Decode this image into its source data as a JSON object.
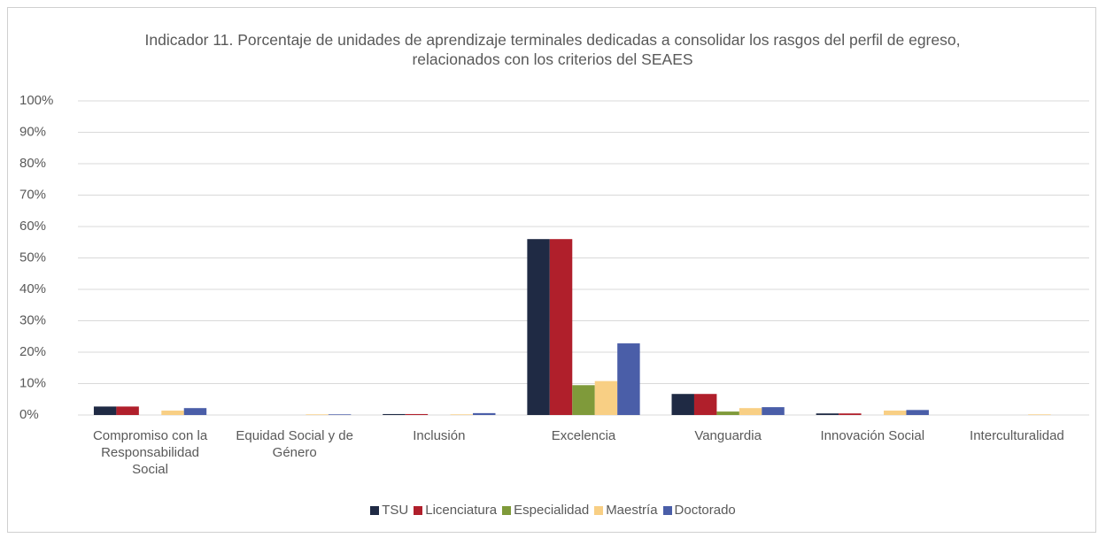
{
  "chart_data": {
    "type": "bar",
    "title": "Indicador 11. Porcentaje de unidades de aprendizaje terminales dedicadas a consolidar los rasgos del perfil de egreso, relacionados con los criterios del SEAES",
    "categories": [
      "Compromiso con la Responsabilidad Social",
      "Equidad Social y de Género",
      "Inclusión",
      "Excelencia",
      "Vanguardia",
      "Innovación Social",
      "Interculturalidad"
    ],
    "series": [
      {
        "name": "TSU",
        "color": "#1f2a44",
        "values": [
          2.7,
          0,
          0.3,
          56,
          6.7,
          0.5,
          0
        ]
      },
      {
        "name": "Licenciatura",
        "color": "#b01f2b",
        "values": [
          2.7,
          0,
          0.3,
          56,
          6.7,
          0.5,
          0
        ]
      },
      {
        "name": "Especialidad",
        "color": "#7f9a3a",
        "values": [
          0,
          0,
          0,
          9.5,
          1.1,
          0,
          0
        ]
      },
      {
        "name": "Maestría",
        "color": "#f8cf84",
        "values": [
          1.4,
          0.2,
          0.2,
          10.8,
          2.2,
          1.4,
          0.2
        ]
      },
      {
        "name": "Doctorado",
        "color": "#4a5ea8",
        "values": [
          2.2,
          0.2,
          0.6,
          22.8,
          2.5,
          1.6,
          0
        ]
      }
    ],
    "ylim": [
      0,
      100
    ],
    "yticks": [
      {
        "value": 0,
        "label": "0%"
      },
      {
        "value": 10,
        "label": "10%"
      },
      {
        "value": 20,
        "label": "20%"
      },
      {
        "value": 30,
        "label": "30%"
      },
      {
        "value": 40,
        "label": "40%"
      },
      {
        "value": 50,
        "label": "50%"
      },
      {
        "value": 60,
        "label": "60%"
      },
      {
        "value": 70,
        "label": "70%"
      },
      {
        "value": 80,
        "label": "80%"
      },
      {
        "value": 90,
        "label": "90%"
      },
      {
        "value": 100,
        "label": "100%"
      }
    ],
    "grid": true,
    "legend": "bottom"
  }
}
